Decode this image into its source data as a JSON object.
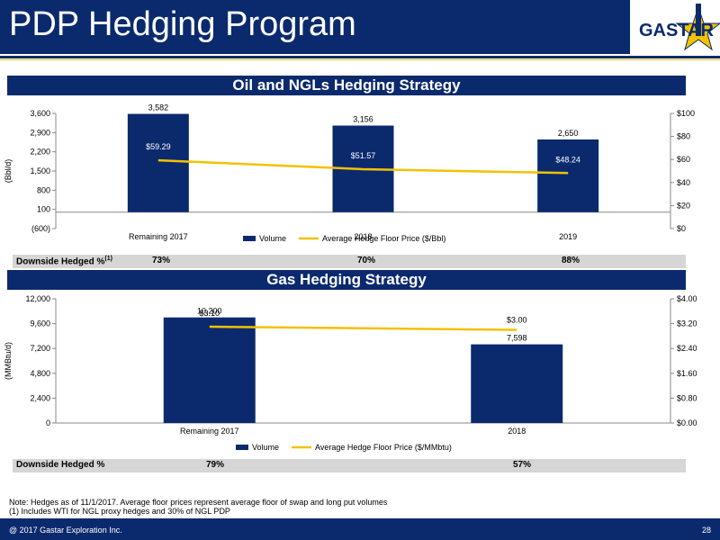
{
  "page": {
    "title": "PDP Hedging Program",
    "logo_text": "GASTAR",
    "notes": [
      "Note: Hedges as of 11/1/2017. Average floor prices represent average floor of swap and long put volumes",
      "(1)    Includes WTI for NGL proxy hedges and 30% of NGL PDP"
    ],
    "footer_left": "@ 2017 Gastar Exploration Inc.",
    "footer_right": "28"
  },
  "colors": {
    "navy": "#0b2a6e",
    "gold": "#f2c200",
    "bar": "#0b2a6e"
  },
  "oil": {
    "section_title": "Oil and NGLs Hedging Strategy",
    "hedged_label": "Downside Hedged %",
    "hedged_sup": "(1)",
    "hedged_values": [
      "73%",
      "70%",
      "88%"
    ]
  },
  "gas": {
    "section_title": "Gas Hedging Strategy",
    "hedged_label": "Downside Hedged %",
    "hedged_values": [
      "79%",
      "57%"
    ]
  },
  "chart_data": [
    {
      "type": "bar",
      "categories": [
        "Remaining 2017",
        "2018",
        "2019"
      ],
      "series": [
        {
          "name": "Volume",
          "values": [
            3582,
            3156,
            2650
          ],
          "labels": [
            "3,582",
            "3,156",
            "2,650"
          ],
          "axis": "left",
          "kind": "bar"
        },
        {
          "name": "Average Hedge Floor Price ($/Bbl)",
          "values": [
            59.29,
            51.57,
            48.24
          ],
          "labels": [
            "$59.29",
            "$51.57",
            "$48.24"
          ],
          "axis": "right",
          "kind": "line"
        }
      ],
      "ylabel": "(Bbl/d)",
      "ylim": [
        -600,
        3600
      ],
      "yticks": [
        "(600)",
        "100",
        "800",
        "1,500",
        "2,200",
        "2,900",
        "3,600"
      ],
      "yticks_values": [
        -600,
        100,
        800,
        1500,
        2200,
        2900,
        3600
      ],
      "y2lim": [
        0,
        100
      ],
      "y2ticks": [
        "$0",
        "$20",
        "$40",
        "$60",
        "$80",
        "$100"
      ],
      "y2ticks_values": [
        0,
        20,
        40,
        60,
        80,
        100
      ],
      "legend": "bottom"
    },
    {
      "type": "bar",
      "categories": [
        "Remaining 2017",
        "2018"
      ],
      "series": [
        {
          "name": "Volume",
          "values": [
            10200,
            7598
          ],
          "labels": [
            "10,200",
            "7,598"
          ],
          "axis": "left",
          "kind": "bar"
        },
        {
          "name": "Average Hedge Floor Price ($/MMbtu)",
          "values": [
            3.1,
            3.0
          ],
          "labels": [
            "$3.10",
            "$3.00"
          ],
          "axis": "right",
          "kind": "line"
        }
      ],
      "ylabel": "(MMBtu/d)",
      "ylim": [
        0,
        12000
      ],
      "yticks": [
        "0",
        "2,400",
        "4,800",
        "7,200",
        "9,600",
        "12,000"
      ],
      "yticks_values": [
        0,
        2400,
        4800,
        7200,
        9600,
        12000
      ],
      "y2lim": [
        0,
        4
      ],
      "y2ticks": [
        "$0.00",
        "$0.80",
        "$1.60",
        "$2.40",
        "$3.20",
        "$4.00"
      ],
      "y2ticks_values": [
        0,
        0.8,
        1.6,
        2.4,
        3.2,
        4.0
      ],
      "legend": "bottom"
    }
  ]
}
